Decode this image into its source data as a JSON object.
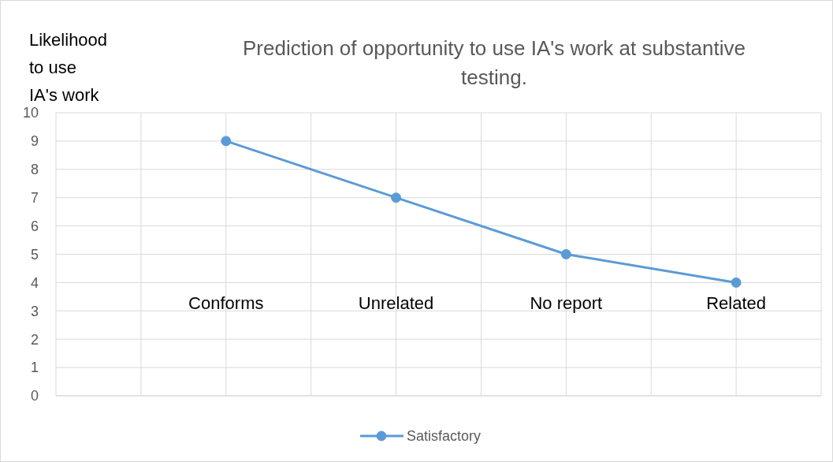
{
  "chart_data": {
    "type": "line",
    "title": "Prediction of opportunity to use IA's work at substantive testing.",
    "ylabel": "Likelihood to use IA's work",
    "categories": [
      "Conforms",
      "Unrelated",
      "No report",
      "Related"
    ],
    "series": [
      {
        "name": "Satisfactory",
        "color": "#5b9bd5",
        "values": [
          9,
          7,
          5,
          4
        ]
      }
    ],
    "ylim": [
      0,
      10
    ],
    "yticks": [
      0,
      1,
      2,
      3,
      4,
      5,
      6,
      7,
      8,
      9,
      10
    ],
    "grid": true,
    "legend": "bottom",
    "marker": "circle",
    "line_style": "solid"
  }
}
